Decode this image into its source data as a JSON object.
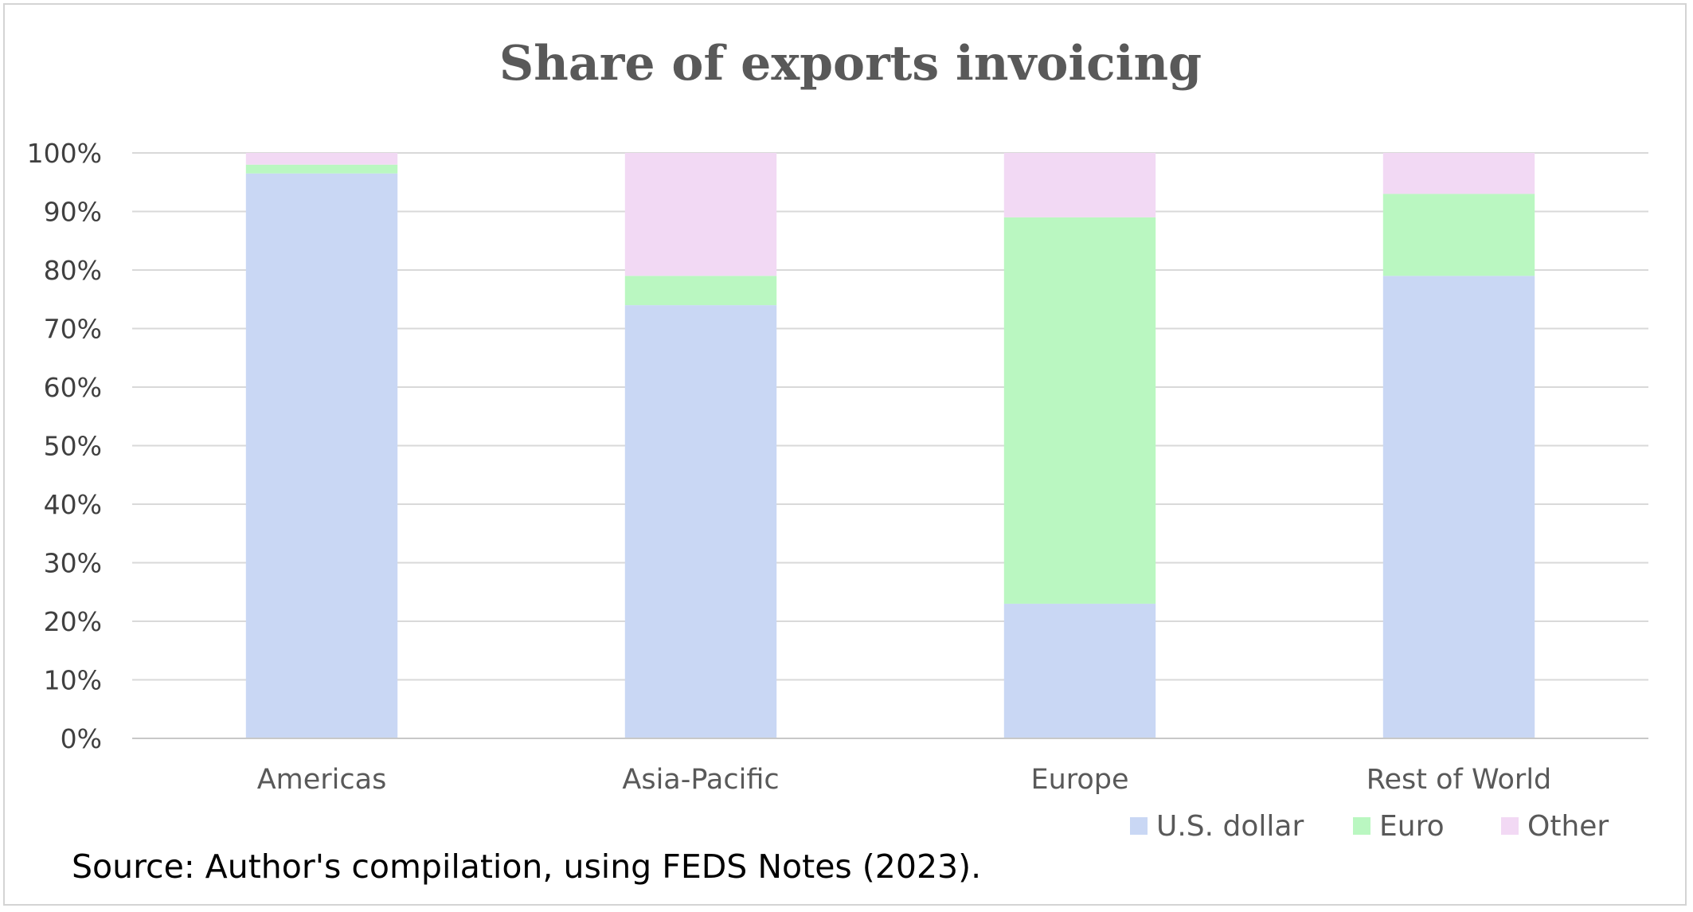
{
  "chart_data": {
    "type": "bar",
    "stacked": true,
    "title": "Share of exports invoicing",
    "xlabel": "",
    "ylabel": "",
    "categories": [
      "Americas",
      "Asia-Pacific",
      "Europe",
      "Rest of World"
    ],
    "series": [
      {
        "name": "U.S. dollar",
        "color": "#c9d7f4",
        "values": [
          96.5,
          74,
          23,
          79
        ]
      },
      {
        "name": "Euro",
        "color": "#baf7c1",
        "values": [
          1.5,
          5,
          66,
          14
        ]
      },
      {
        "name": "Other",
        "color": "#f2d9f4",
        "values": [
          2,
          21,
          11,
          7
        ]
      }
    ],
    "ylim": [
      0,
      100
    ],
    "yticks": [
      "0%",
      "10%",
      "20%",
      "30%",
      "40%",
      "50%",
      "60%",
      "70%",
      "80%",
      "90%",
      "100%"
    ],
    "grid": true,
    "legend_position": "bottom-right",
    "source": "Source: Author's compilation, using FEDS Notes (2023)."
  }
}
